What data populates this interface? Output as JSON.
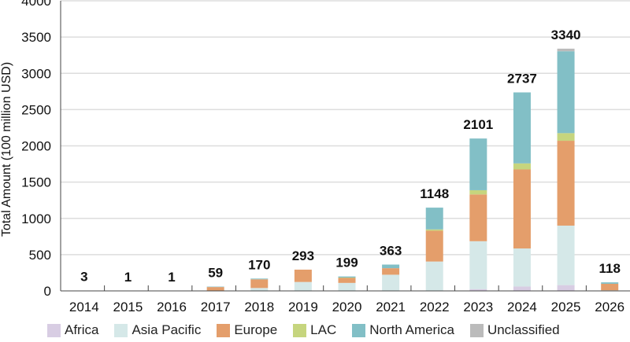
{
  "chart_data": {
    "type": "bar",
    "stacked": true,
    "title": "",
    "xlabel": "",
    "ylabel": "Total Amount (100 million USD)",
    "ylim": [
      0,
      4000
    ],
    "yticks": [
      0,
      500,
      1000,
      1500,
      2000,
      2500,
      3000,
      3500,
      4000
    ],
    "grid": true,
    "legend_position": "bottom",
    "categories": [
      "2014",
      "2015",
      "2016",
      "2017",
      "2018",
      "2019",
      "2020",
      "2021",
      "2022",
      "2023",
      "2024",
      "2025",
      "2026"
    ],
    "totals": [
      3,
      1,
      1,
      59,
      170,
      293,
      199,
      363,
      1148,
      2101,
      2737,
      3340,
      118
    ],
    "series": [
      {
        "name": "Africa",
        "color": "#d8cde3",
        "values": [
          0,
          0,
          0,
          0,
          0,
          0,
          0,
          5,
          5,
          25,
          60,
          80,
          0
        ]
      },
      {
        "name": "Asia Pacific",
        "color": "#d5e8e8",
        "values": [
          1,
          0,
          0,
          3,
          40,
          123,
          110,
          218,
          400,
          660,
          525,
          820,
          8
        ]
      },
      {
        "name": "Europe",
        "color": "#e49e6b",
        "values": [
          2,
          1,
          1,
          50,
          120,
          170,
          70,
          90,
          425,
          645,
          1090,
          1170,
          90
        ]
      },
      {
        "name": "LAC",
        "color": "#c6d57e",
        "values": [
          0,
          0,
          0,
          0,
          0,
          0,
          4,
          0,
          18,
          58,
          83,
          105,
          0
        ]
      },
      {
        "name": "North America",
        "color": "#82bfc6",
        "values": [
          0,
          0,
          0,
          6,
          10,
          0,
          15,
          50,
          300,
          713,
          979,
          1129,
          20
        ]
      },
      {
        "name": "Unclassified",
        "color": "#bbbbbb",
        "values": [
          0,
          0,
          0,
          0,
          0,
          0,
          0,
          0,
          0,
          0,
          0,
          36,
          0
        ]
      }
    ]
  }
}
